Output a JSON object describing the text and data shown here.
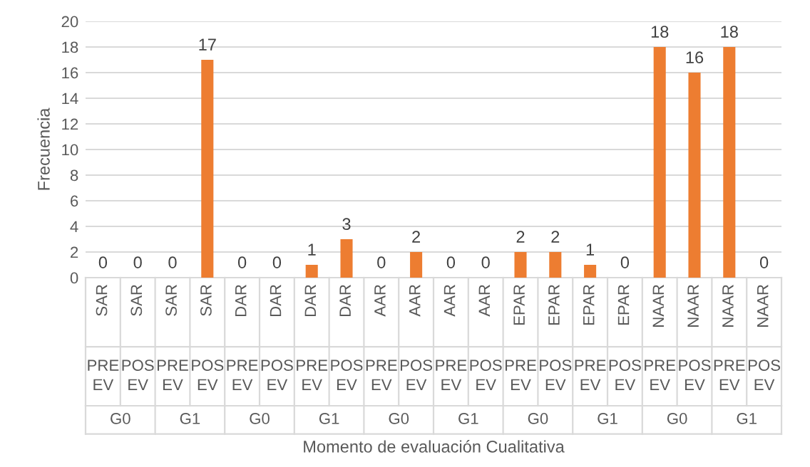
{
  "chart_data": {
    "type": "bar",
    "ylabel": "Frecuencia",
    "categories": [
      "SAR",
      "SAR",
      "SAR",
      "SAR",
      "DAR",
      "DAR",
      "DAR",
      "DAR",
      "AAR",
      "AAR",
      "AAR",
      "AAR",
      "EPAR",
      "EPAR",
      "EPAR",
      "EPAR",
      "NAAR",
      "NAAR",
      "NAAR",
      "NAAR"
    ],
    "annotations": [
      "PRE EV",
      "POS EV",
      "PRE EV",
      "POS EV",
      "PRE EV",
      "POS EV",
      "PRE EV",
      "POS EV",
      "PRE EV",
      "POS EV",
      "PRE EV",
      "POS EV",
      "PRE EV",
      "POS EV",
      "PRE EV",
      "POS EV",
      "PRE EV",
      "POS EV",
      "PRE EV",
      "POS EV",
      "G0",
      "G1",
      "G0",
      "G1",
      "G0",
      "G1",
      "G0",
      "G1",
      "G0",
      "G1",
      "Momento de evaluación Cualitativa"
    ],
    "values": [
      0,
      0,
      0,
      17,
      0,
      0,
      1,
      3,
      0,
      2,
      0,
      0,
      2,
      2,
      1,
      0,
      18,
      16,
      18,
      0
    ],
    "color": "#ed7d31",
    "ylim": [
      0,
      20
    ],
    "yticks": [
      0,
      2,
      4,
      6,
      8,
      10,
      12,
      14,
      16,
      18,
      20
    ],
    "grid": "y",
    "data_labels": true
  }
}
